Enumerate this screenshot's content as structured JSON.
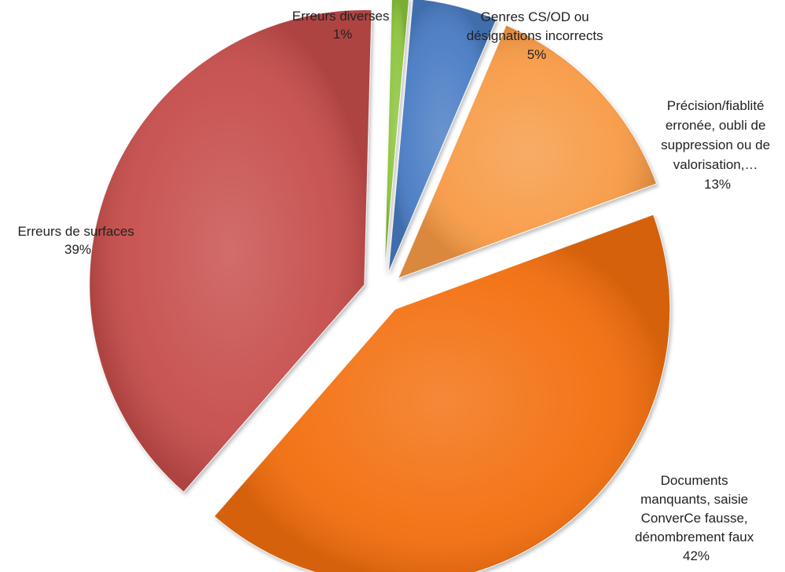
{
  "chart_data": {
    "type": "pie",
    "title": "",
    "exploded": true,
    "slices": [
      {
        "label": "Erreurs diverses",
        "value": 1,
        "display": "1%",
        "color": "#8CC43E"
      },
      {
        "label": "Genres CS/OD ou désignations incorrects",
        "value": 5,
        "display": "5%",
        "color": "#4A7CC4"
      },
      {
        "label": "Précision/fiablité erronée, oubli de suppression ou de valorisation,…",
        "value": 13,
        "display": "13%",
        "color": "#F79A45"
      },
      {
        "label": "Documents manquants, saisie ConverCe fausse, dénombrement faux",
        "value": 42,
        "display": "42%",
        "color": "#F36E0A"
      },
      {
        "label": "Erreurs de surfaces",
        "value": 39,
        "display": "39%",
        "color": "#C64D4C"
      }
    ]
  },
  "labels": {
    "s0": {
      "lines": [
        "Erreurs diverses"
      ],
      "pct": "1%"
    },
    "s1": {
      "lines": [
        "Genres CS/OD ou",
        "désignations incorrects"
      ],
      "pct": "5%"
    },
    "s2": {
      "lines": [
        "Précision/fiablité",
        "erronée, oubli de",
        "suppression ou de",
        "valorisation,…"
      ],
      "pct": "13%"
    },
    "s3": {
      "lines": [
        "Documents",
        "manquants, saisie",
        "ConverCe fausse,",
        "dénombrement faux"
      ],
      "pct": "42%"
    },
    "s4": {
      "lines": [
        "Erreurs de surfaces"
      ],
      "pct": "39%"
    }
  }
}
